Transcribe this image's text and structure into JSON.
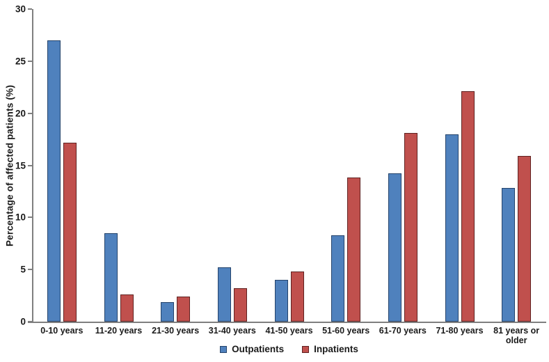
{
  "chart_data": {
    "type": "bar",
    "title": "",
    "categories": [
      "0-10 years",
      "11-20 years",
      "21-30 years",
      "31-40 years",
      "41-50 years",
      "51-60 years",
      "61-70 years",
      "71-80 years",
      "81 years or older"
    ],
    "series": [
      {
        "name": "Outpatients",
        "color": "#4f81bd",
        "border_color": "#24436b",
        "values": [
          27.0,
          8.5,
          1.9,
          5.2,
          4.0,
          8.3,
          14.2,
          18.0,
          12.8
        ]
      },
      {
        "name": "Inpatients",
        "color": "#c0504d",
        "border_color": "#5f2120",
        "values": [
          17.2,
          2.6,
          2.4,
          3.2,
          4.8,
          13.8,
          18.1,
          22.1,
          15.9
        ]
      }
    ],
    "xlabel": "",
    "ylabel": "Percentage of affected patients (%)",
    "ylim": [
      0,
      30
    ],
    "yticks": [
      0,
      5,
      10,
      15,
      20,
      25,
      30
    ],
    "grid": false,
    "legend_position": "bottom-center",
    "axis_color": "#7f7f7f",
    "text_color": "#1a1a1a",
    "plot_background": "#ffffff"
  }
}
